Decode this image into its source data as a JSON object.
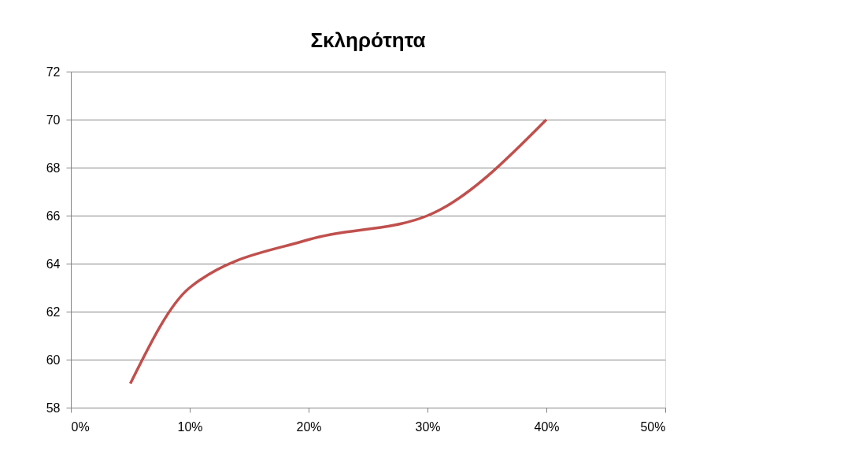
{
  "chart_data": {
    "type": "line",
    "title": "Σκληρότητα",
    "x": [
      5,
      10,
      20,
      30,
      40
    ],
    "series": [
      {
        "color": "#c0504d",
        "values": [
          59,
          63,
          65,
          66,
          70
        ]
      }
    ],
    "xlim": [
      0,
      50
    ],
    "xticks": [
      {
        "value": 0,
        "label": "0%"
      },
      {
        "value": 10,
        "label": "10%"
      },
      {
        "value": 20,
        "label": "20%"
      },
      {
        "value": 30,
        "label": "30%"
      },
      {
        "value": 40,
        "label": "40%"
      },
      {
        "value": 50,
        "label": "50%"
      }
    ],
    "ylim": [
      58,
      72
    ],
    "yticks": [
      58,
      60,
      62,
      64,
      66,
      68,
      70,
      72
    ],
    "grid": "y",
    "legend": false,
    "marker": "none",
    "line_style": "solid"
  }
}
